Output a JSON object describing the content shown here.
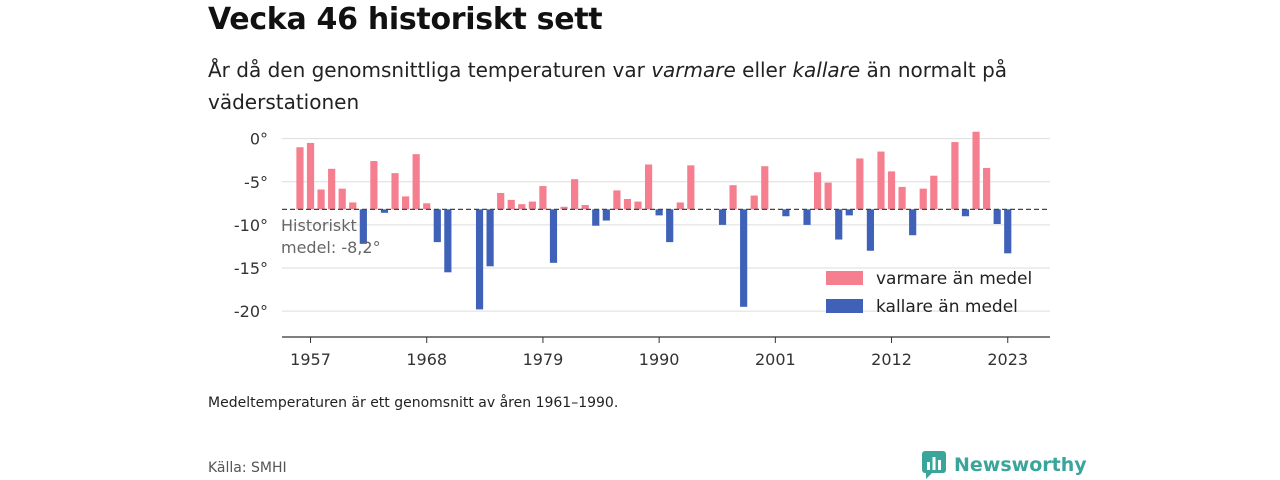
{
  "header": {
    "title": "Vecka 46 historiskt sett",
    "subtitle_parts": [
      "År då den genomsnittliga temperaturen var ",
      "varmare",
      " eller ",
      "kallare",
      " än normalt på väderstationen"
    ]
  },
  "chart_data": {
    "type": "bar",
    "x": [
      1956,
      1957,
      1958,
      1959,
      1960,
      1961,
      1962,
      1963,
      1964,
      1965,
      1966,
      1967,
      1968,
      1969,
      1970,
      1971,
      1972,
      1973,
      1974,
      1975,
      1976,
      1977,
      1978,
      1979,
      1980,
      1981,
      1982,
      1983,
      1984,
      1985,
      1986,
      1987,
      1988,
      1989,
      1990,
      1991,
      1992,
      1993,
      1994,
      1995,
      1996,
      1997,
      1998,
      1999,
      2000,
      2001,
      2002,
      2003,
      2004,
      2005,
      2006,
      2007,
      2008,
      2009,
      2010,
      2011,
      2012,
      2013,
      2014,
      2015,
      2016,
      2017,
      2018,
      2019,
      2020,
      2021,
      2022,
      2023
    ],
    "values": [
      -1.0,
      -0.5,
      -5.9,
      -3.5,
      -5.8,
      -7.4,
      -12.2,
      -2.6,
      -8.6,
      -4.0,
      -6.7,
      -1.8,
      -7.5,
      -12.0,
      -15.5,
      -8.2,
      -8.2,
      -19.8,
      -14.8,
      -6.3,
      -7.1,
      -7.6,
      -7.3,
      -5.5,
      -14.4,
      -7.9,
      -4.7,
      -7.7,
      -10.1,
      -9.5,
      -6.0,
      -7.0,
      -7.3,
      -3.0,
      -8.9,
      -12.0,
      -7.4,
      -3.1,
      -8.2,
      -8.2,
      -10.0,
      -5.4,
      -19.5,
      -6.6,
      -3.2,
      -8.2,
      -9.0,
      -8.2,
      -10.0,
      -3.9,
      -5.1,
      -11.7,
      -8.9,
      -2.3,
      -13.0,
      -1.5,
      -3.8,
      -5.6,
      -11.2,
      -5.8,
      -4.3,
      -8.2,
      -0.4,
      -9.0,
      0.8,
      -3.4,
      -9.9,
      -13.3
    ],
    "baseline": -8.2,
    "baseline_label": [
      "Historiskt",
      "medel: -8,2°"
    ],
    "y_ticks": [
      "0°",
      "-5°",
      "-10°",
      "-15°",
      "-20°"
    ],
    "y_tick_values": [
      0,
      -5,
      -10,
      -15,
      -20
    ],
    "x_ticks": [
      "1957",
      "1968",
      "1979",
      "1990",
      "2001",
      "2012",
      "2023"
    ],
    "x_tick_values": [
      1957,
      1968,
      1979,
      1990,
      2001,
      2012,
      2023
    ],
    "ylim": [
      -23,
      1
    ],
    "xlim": [
      1954.3,
      2027
    ],
    "series": [
      {
        "name": "varmare än medel",
        "color": "#f57f8e"
      },
      {
        "name": "kallare än medel",
        "color": "#3f62b8"
      }
    ],
    "legend_position": "bottom-right",
    "grid": true
  },
  "footer": {
    "note": "Medeltemperaturen är ett genomsnitt av åren 1961–1990.",
    "source": "Källa: SMHI",
    "brand": "Newsworthy",
    "brand_color": "#3aa59a"
  }
}
